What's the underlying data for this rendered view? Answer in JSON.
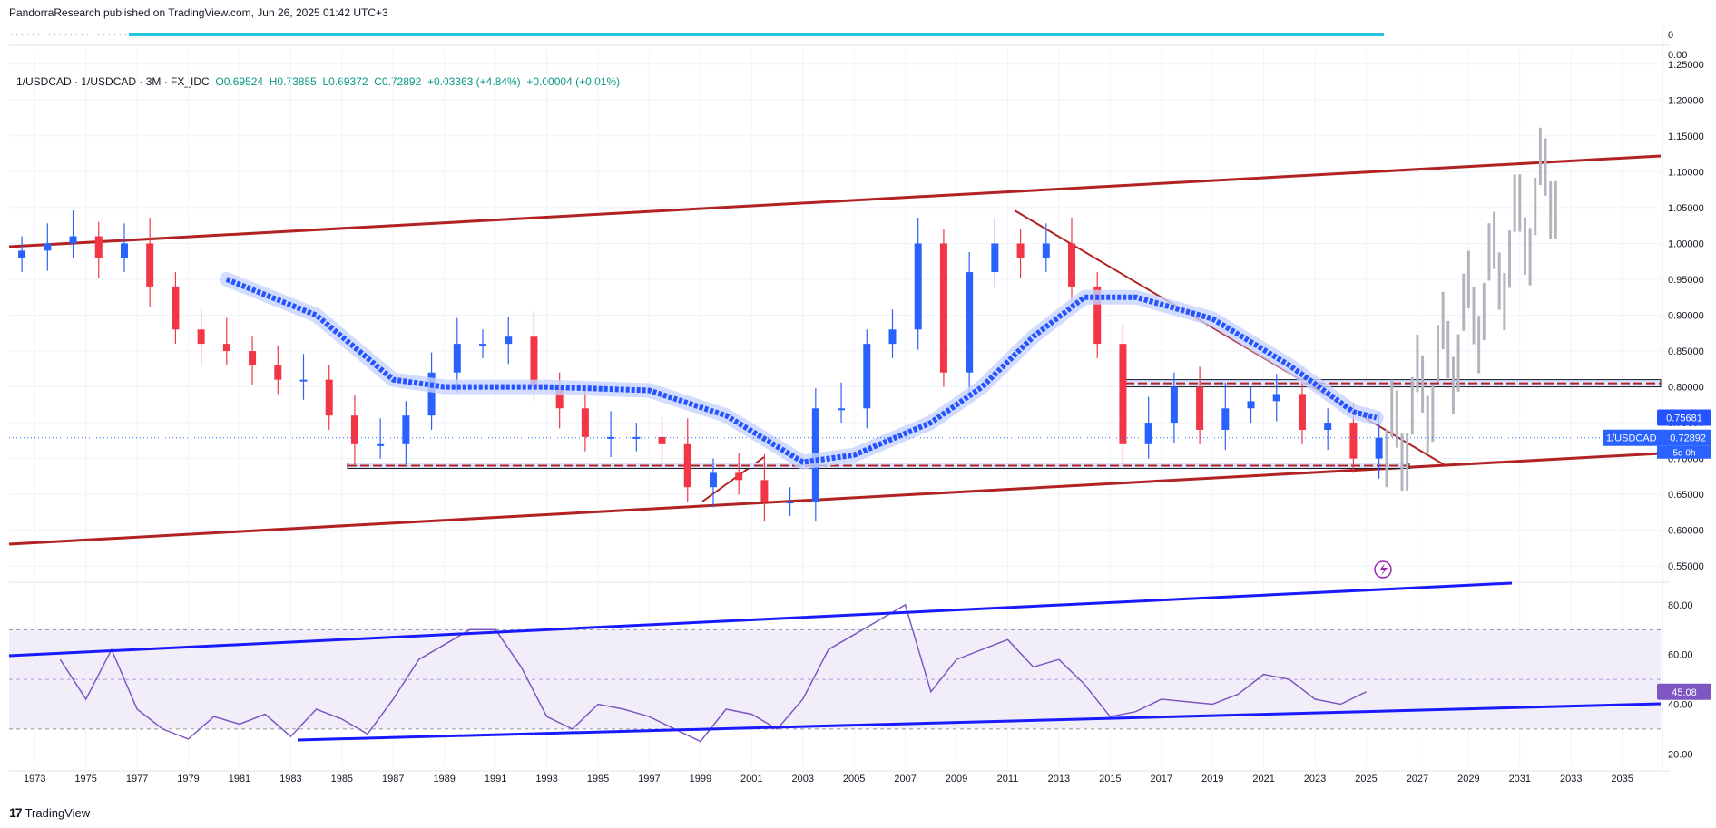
{
  "header": {
    "publisher_text": "PandorraResearch published on TradingView.com, Jun 26, 2025 01:42 UTC+3"
  },
  "legend": {
    "symbol": "1/USDCAD · 1/USDCAD · 3M · FX_IDC",
    "open": "O0.69524",
    "high": "H0.73855",
    "low": "L0.69372",
    "close": "C0.72892",
    "change": "+0.03363 (+4.84%)",
    "extra": "+0.00004 (+0.01%)"
  },
  "brand": {
    "logo": "17",
    "name": "TradingView"
  },
  "colors": {
    "up": "#2962ff",
    "down": "#f23645",
    "trend": "#b22222",
    "channel": "#1a1aff",
    "ma": "#2453ff",
    "rsi": "#7e57c2",
    "projection": "#b2b5be"
  },
  "chart_data": [
    {
      "type": "candlestick",
      "title": "1/USDCAD · 3M · FX_IDC",
      "x": [
        1972,
        1973,
        1974,
        1975,
        1976,
        1977,
        1978,
        1979,
        1980,
        1981,
        1982,
        1983,
        1984,
        1985,
        1986,
        1987,
        1988,
        1989,
        1990,
        1991,
        1992,
        1993,
        1994,
        1995,
        1996,
        1997,
        1998,
        1999,
        2000,
        2001,
        2002,
        2003,
        2004,
        2005,
        2006,
        2007,
        2008,
        2009,
        2010,
        2011,
        2012,
        2013,
        2014,
        2015,
        2016,
        2017,
        2018,
        2019,
        2020,
        2021,
        2022,
        2023,
        2024,
        2025
      ],
      "close": [
        0.99,
        1.0,
        1.01,
        0.98,
        1.0,
        0.94,
        0.88,
        0.86,
        0.85,
        0.83,
        0.81,
        0.81,
        0.76,
        0.72,
        0.72,
        0.76,
        0.82,
        0.86,
        0.86,
        0.87,
        0.8,
        0.77,
        0.73,
        0.73,
        0.73,
        0.72,
        0.66,
        0.68,
        0.67,
        0.64,
        0.64,
        0.77,
        0.77,
        0.86,
        0.88,
        1.0,
        0.82,
        0.96,
        1.0,
        0.98,
        1.0,
        0.94,
        0.86,
        0.72,
        0.75,
        0.8,
        0.74,
        0.77,
        0.78,
        0.79,
        0.74,
        0.75,
        0.7,
        0.729
      ],
      "y_ticks": [
        "0.55000",
        "0.60000",
        "0.65000",
        "0.70000",
        "0.75000",
        "0.80000",
        "0.85000",
        "0.90000",
        "0.95000",
        "1.00000",
        "1.05000",
        "1.10000",
        "1.15000",
        "1.20000",
        "1.25000"
      ],
      "ylim": [
        0.53,
        1.27
      ],
      "moving_average_label": "0.75681",
      "price_label": "1/USDCAD",
      "price_value": "0.72892",
      "countdown": "5d 0h",
      "support_level": 0.69,
      "resistance_level": 0.805
    },
    {
      "type": "line",
      "title": "RSI",
      "x": [
        1974,
        1975,
        1976,
        1977,
        1978,
        1979,
        1980,
        1981,
        1982,
        1983,
        1984,
        1985,
        1986,
        1987,
        1988,
        1989,
        1990,
        1991,
        1992,
        1993,
        1994,
        1995,
        1996,
        1997,
        1998,
        1999,
        2000,
        2001,
        2002,
        2003,
        2004,
        2005,
        2006,
        2007,
        2008,
        2009,
        2010,
        2011,
        2012,
        2013,
        2014,
        2015,
        2016,
        2017,
        2018,
        2019,
        2020,
        2021,
        2022,
        2023,
        2024,
        2025
      ],
      "values": [
        58,
        42,
        62,
        38,
        30,
        26,
        35,
        32,
        36,
        27,
        38,
        34,
        28,
        42,
        58,
        64,
        70,
        70,
        55,
        35,
        30,
        40,
        38,
        35,
        30,
        25,
        38,
        36,
        30,
        42,
        62,
        68,
        74,
        80,
        45,
        58,
        62,
        66,
        55,
        58,
        48,
        35,
        37,
        42,
        41,
        40,
        44,
        52,
        50,
        42,
        40,
        45
      ],
      "y_ticks": [
        "20.00",
        "40.00",
        "60.00",
        "80.00"
      ],
      "ylim": [
        15,
        88
      ],
      "band": [
        30,
        70
      ],
      "midline": 50,
      "last_label": "45.08"
    }
  ],
  "x_axis_labels": [
    "1973",
    "1975",
    "1977",
    "1979",
    "1981",
    "1983",
    "1985",
    "1987",
    "1989",
    "1991",
    "1993",
    "1995",
    "1997",
    "1999",
    "2001",
    "2003",
    "2005",
    "2007",
    "2009",
    "2011",
    "2013",
    "2015",
    "2017",
    "2019",
    "2021",
    "2023",
    "2025",
    "2027",
    "2029",
    "2031",
    "2033",
    "2035"
  ],
  "top_pane": {
    "ticks": [
      "0",
      "0.00"
    ]
  }
}
